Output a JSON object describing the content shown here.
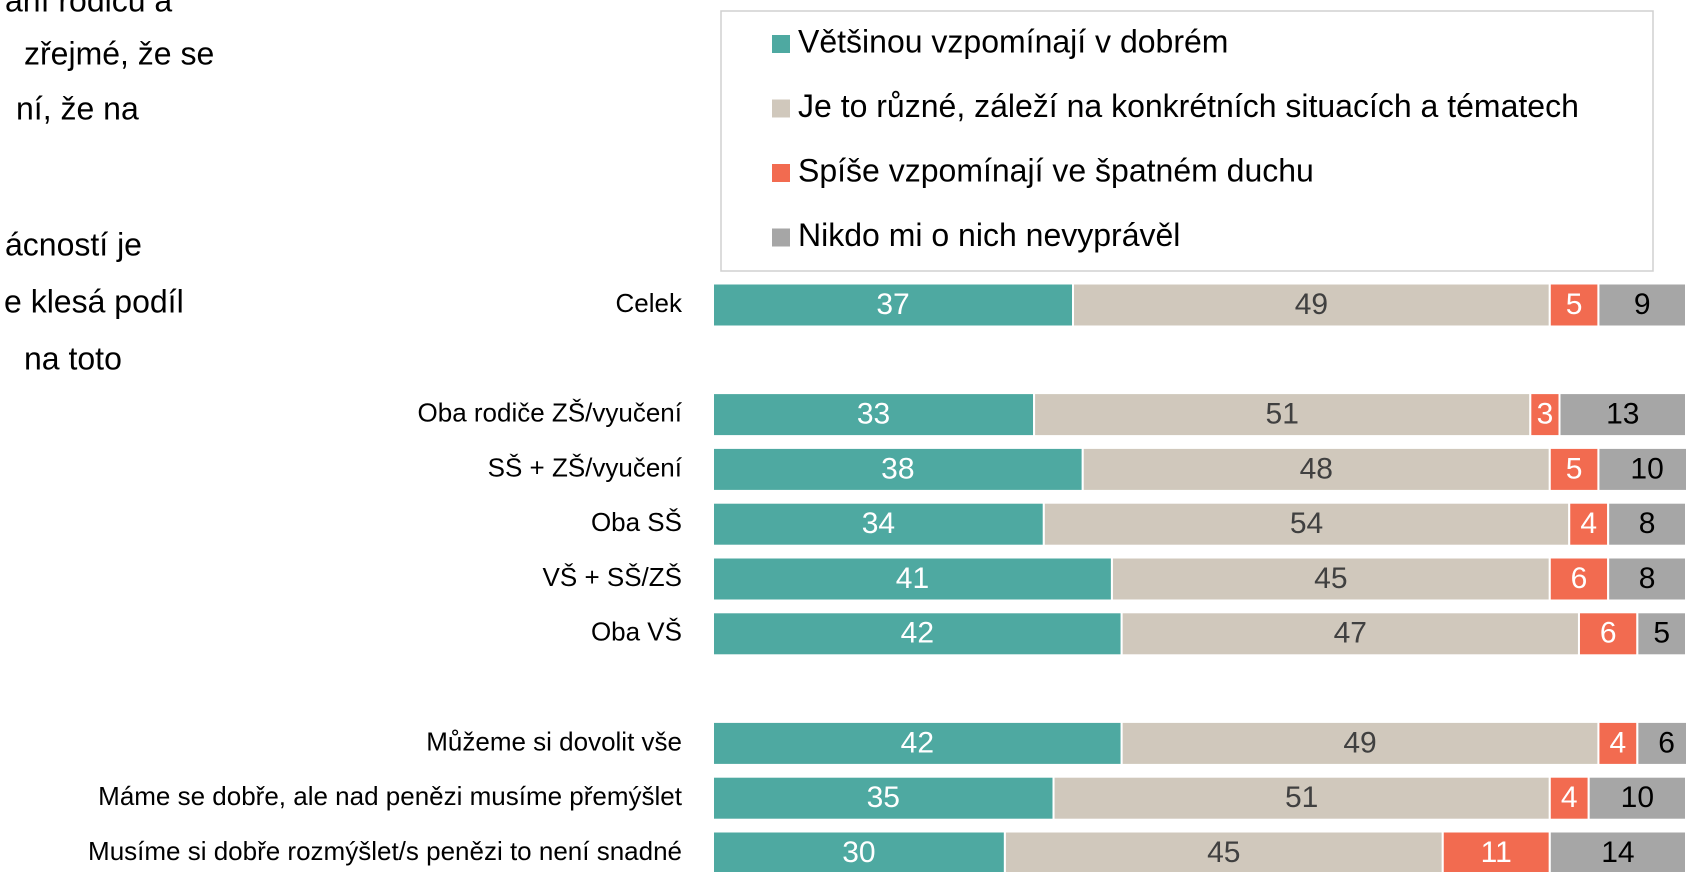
{
  "side_text": {
    "lines": [
      "ání rodičů a",
      "zřejmé, že se",
      "ní, že na",
      "ácností je",
      "e klesá podíl",
      "na toto"
    ]
  },
  "chart_data": {
    "type": "stacked-bar-horizontal",
    "categories": [
      "Celek",
      null,
      "Oba rodiče ZŠ/vyučení",
      "SŠ + ZŠ/vyučení",
      "Oba SŠ",
      "VŠ + SŠ/ZŠ",
      "Oba VŠ",
      null,
      "Můžeme si dovolit vše",
      "Máme se dobře, ale nad penězi musíme přemýšlet",
      "Musíme si dobře rozmýšlet/s penězi to není snadné"
    ],
    "series": [
      {
        "name": "Většinou vzpomínají v dobrém",
        "color": "#4ea9a1",
        "values": [
          37,
          null,
          33,
          38,
          34,
          41,
          42,
          null,
          42,
          35,
          30
        ]
      },
      {
        "name": "Je to různé, záleží na konkrétních situacích a tématech",
        "color": "#d0c8bc",
        "values": [
          49,
          null,
          51,
          48,
          54,
          45,
          47,
          null,
          49,
          51,
          45
        ]
      },
      {
        "name": "Spíše vzpomínají ve špatném duchu",
        "color": "#f26b50",
        "values": [
          5,
          null,
          3,
          5,
          4,
          6,
          6,
          null,
          4,
          4,
          11
        ]
      },
      {
        "name": "Nikdo mi o nich nevyprávěl",
        "color": "#a6a6a6",
        "values": [
          9,
          null,
          13,
          10,
          8,
          8,
          5,
          null,
          6,
          10,
          14
        ]
      }
    ],
    "xlim": [
      0,
      100
    ],
    "legend": "top"
  }
}
